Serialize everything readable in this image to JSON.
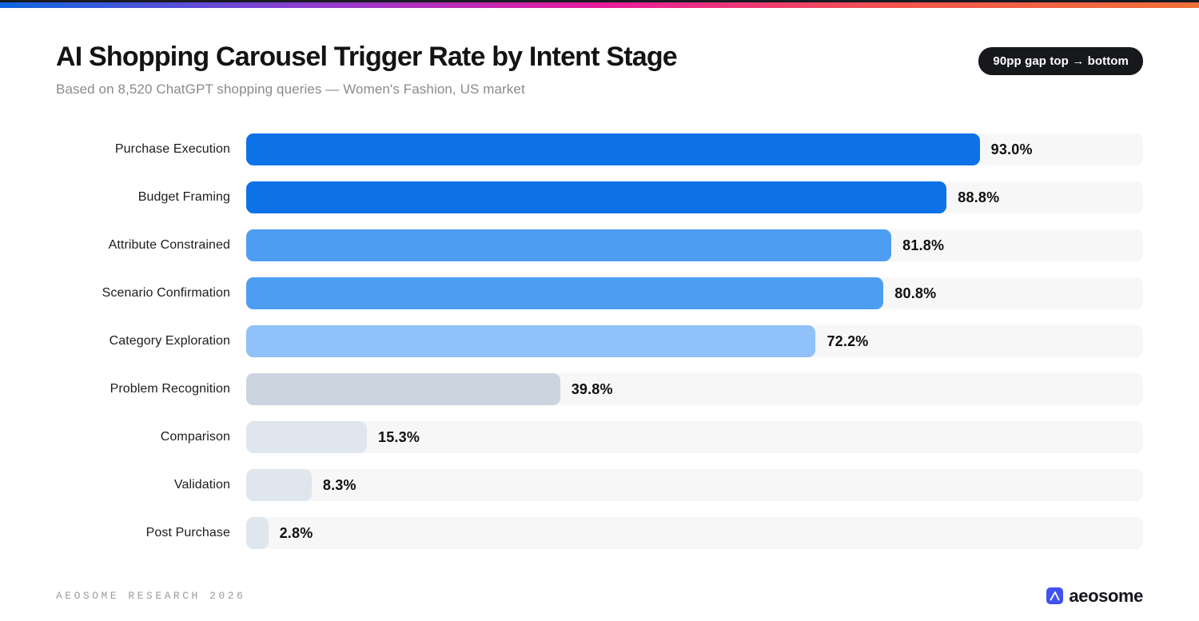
{
  "header": {
    "title": "AI Shopping Carousel Trigger Rate by Intent Stage",
    "subtitle": "Based on 8,520 ChatGPT shopping queries — Women's Fashion, US market",
    "badge_label": "90pp gap top → bottom"
  },
  "chart_data": {
    "type": "bar",
    "orientation": "horizontal",
    "title": "AI Shopping Carousel Trigger Rate by Intent Stage",
    "categories": [
      "Purchase Execution",
      "Budget Framing",
      "Attribute Constrained",
      "Scenario Confirmation",
      "Category Exploration",
      "Problem Recognition",
      "Comparison",
      "Validation",
      "Post Purchase"
    ],
    "values": [
      93.0,
      88.8,
      81.8,
      80.8,
      72.2,
      39.8,
      15.3,
      8.3,
      2.8
    ],
    "value_labels": [
      "93.0%",
      "88.8%",
      "81.8%",
      "80.8%",
      "72.2%",
      "39.8%",
      "15.3%",
      "8.3%",
      "2.8%"
    ],
    "unit": "%",
    "xlim": [
      0,
      113.7
    ],
    "grid": false,
    "value_label_position": "right-of-bar",
    "bar_colors": [
      "#0d72e8",
      "#0d72e8",
      "#4d9df2",
      "#4d9df2",
      "#90c1f8",
      "#ccd4df",
      "#dfe6ee",
      "#dfe6ee",
      "#dfe6ee"
    ],
    "track_color": "#f7f7f8"
  },
  "footer": {
    "research_label": "AEOSOME RESEARCH 2026",
    "brand_name": "aeosome",
    "logo_color": "#4152f0"
  },
  "theme": {
    "top_edge_color": "#191a22",
    "accent_gradient": [
      "#0f66e0",
      "#8b3fd0",
      "#e81c9c",
      "#f4554d",
      "#f07038"
    ]
  }
}
